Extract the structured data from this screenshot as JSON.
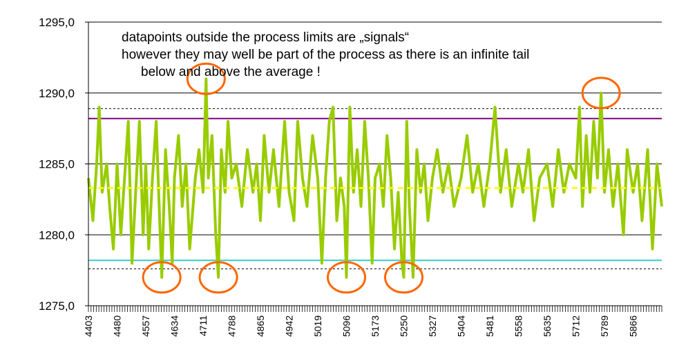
{
  "chart_data": {
    "type": "line",
    "title": "",
    "xlabel": "",
    "ylabel": "",
    "x_range": [
      4403,
      5943
    ],
    "ylim": [
      1275,
      1295
    ],
    "y_ticks": [
      "1275,0",
      "1280,0",
      "1285,0",
      "1290,0",
      "1295,0"
    ],
    "y_tick_values": [
      1275,
      1280,
      1285,
      1290,
      1295
    ],
    "x_ticks": [
      "4403",
      "4480",
      "4557",
      "4634",
      "4711",
      "4788",
      "4865",
      "4942",
      "5019",
      "5096",
      "5173",
      "5250",
      "5327",
      "5404",
      "5481",
      "5558",
      "5635",
      "5712",
      "5789",
      "5866"
    ],
    "x_tick_values": [
      4403,
      4480,
      4557,
      4634,
      4711,
      4788,
      4865,
      4942,
      5019,
      5096,
      5173,
      5250,
      5327,
      5404,
      5481,
      5558,
      5635,
      5712,
      5789,
      5866
    ],
    "grid": "horizontal gridlines at y ticks",
    "series": [
      {
        "color": "#99cc00",
        "points": [
          [
            4403,
            1284
          ],
          [
            4415,
            1281
          ],
          [
            4425,
            1285
          ],
          [
            4432,
            1289
          ],
          [
            4440,
            1283
          ],
          [
            4452,
            1285
          ],
          [
            4460,
            1282
          ],
          [
            4470,
            1279
          ],
          [
            4480,
            1285
          ],
          [
            4490,
            1280
          ],
          [
            4500,
            1284
          ],
          [
            4510,
            1288
          ],
          [
            4520,
            1278
          ],
          [
            4530,
            1283
          ],
          [
            4540,
            1288
          ],
          [
            4550,
            1280
          ],
          [
            4557,
            1285
          ],
          [
            4565,
            1279
          ],
          [
            4575,
            1284
          ],
          [
            4585,
            1288
          ],
          [
            4593,
            1282
          ],
          [
            4600,
            1277
          ],
          [
            4610,
            1286
          ],
          [
            4620,
            1282
          ],
          [
            4628,
            1278
          ],
          [
            4634,
            1284
          ],
          [
            4645,
            1287
          ],
          [
            4655,
            1282
          ],
          [
            4665,
            1285
          ],
          [
            4675,
            1279
          ],
          [
            4690,
            1284
          ],
          [
            4700,
            1286
          ],
          [
            4711,
            1283
          ],
          [
            4719,
            1291
          ],
          [
            4725,
            1284
          ],
          [
            4735,
            1287
          ],
          [
            4745,
            1280
          ],
          [
            4752,
            1277
          ],
          [
            4760,
            1286
          ],
          [
            4770,
            1283
          ],
          [
            4778,
            1288
          ],
          [
            4788,
            1284
          ],
          [
            4800,
            1285
          ],
          [
            4815,
            1282
          ],
          [
            4830,
            1286
          ],
          [
            4845,
            1283
          ],
          [
            4855,
            1285
          ],
          [
            4865,
            1281
          ],
          [
            4875,
            1287
          ],
          [
            4888,
            1283
          ],
          [
            4900,
            1286
          ],
          [
            4915,
            1282
          ],
          [
            4930,
            1288
          ],
          [
            4942,
            1283
          ],
          [
            4955,
            1281
          ],
          [
            4965,
            1288
          ],
          [
            4978,
            1284
          ],
          [
            4990,
            1282
          ],
          [
            5005,
            1287
          ],
          [
            5019,
            1284
          ],
          [
            5030,
            1278
          ],
          [
            5040,
            1284
          ],
          [
            5050,
            1288
          ],
          [
            5060,
            1289
          ],
          [
            5070,
            1281
          ],
          [
            5080,
            1284
          ],
          [
            5090,
            1282
          ],
          [
            5096,
            1277
          ],
          [
            5105,
            1289
          ],
          [
            5115,
            1283
          ],
          [
            5125,
            1286
          ],
          [
            5135,
            1282
          ],
          [
            5145,
            1288
          ],
          [
            5155,
            1284
          ],
          [
            5165,
            1278
          ],
          [
            5173,
            1284
          ],
          [
            5185,
            1285
          ],
          [
            5195,
            1282
          ],
          [
            5205,
            1287
          ],
          [
            5215,
            1284
          ],
          [
            5225,
            1279
          ],
          [
            5235,
            1283
          ],
          [
            5245,
            1278
          ],
          [
            5250,
            1277
          ],
          [
            5258,
            1288
          ],
          [
            5265,
            1282
          ],
          [
            5275,
            1277
          ],
          [
            5285,
            1286
          ],
          [
            5295,
            1283
          ],
          [
            5305,
            1285
          ],
          [
            5315,
            1281
          ],
          [
            5327,
            1284
          ],
          [
            5340,
            1286
          ],
          [
            5355,
            1283
          ],
          [
            5370,
            1285
          ],
          [
            5385,
            1282
          ],
          [
            5404,
            1284
          ],
          [
            5420,
            1287
          ],
          [
            5435,
            1283
          ],
          [
            5450,
            1285
          ],
          [
            5465,
            1282
          ],
          [
            5481,
            1285
          ],
          [
            5495,
            1289
          ],
          [
            5510,
            1283
          ],
          [
            5525,
            1286
          ],
          [
            5540,
            1282
          ],
          [
            5558,
            1285
          ],
          [
            5570,
            1283
          ],
          [
            5585,
            1286
          ],
          [
            5600,
            1281
          ],
          [
            5615,
            1284
          ],
          [
            5635,
            1285
          ],
          [
            5650,
            1282
          ],
          [
            5665,
            1286
          ],
          [
            5680,
            1283
          ],
          [
            5695,
            1285
          ],
          [
            5712,
            1284
          ],
          [
            5722,
            1289
          ],
          [
            5730,
            1282
          ],
          [
            5740,
            1287
          ],
          [
            5750,
            1283
          ],
          [
            5760,
            1288
          ],
          [
            5770,
            1284
          ],
          [
            5780,
            1290
          ],
          [
            5789,
            1283
          ],
          [
            5800,
            1286
          ],
          [
            5812,
            1282
          ],
          [
            5825,
            1285
          ],
          [
            5840,
            1280
          ],
          [
            5850,
            1286
          ],
          [
            5866,
            1283
          ],
          [
            5878,
            1285
          ],
          [
            5890,
            1281
          ],
          [
            5905,
            1286
          ],
          [
            5918,
            1279
          ],
          [
            5930,
            1285
          ],
          [
            5943,
            1282
          ]
        ]
      }
    ],
    "reference_lines": [
      {
        "label": "",
        "value": 1283.3,
        "color": "#ffff00",
        "style": "dashed"
      },
      {
        "label": "",
        "value": 1288.2,
        "color": "#800080",
        "style": "solid"
      },
      {
        "label": "",
        "value": 1278.2,
        "color": "#33cccc",
        "style": "solid"
      },
      {
        "label": "",
        "value": 1288.9,
        "color": "#000000",
        "style": "dotted"
      },
      {
        "label": "",
        "value": 1277.6,
        "color": "#000000",
        "style": "dotted"
      }
    ],
    "highlighted_points": [
      {
        "x": 4600,
        "y": 1277
      },
      {
        "x": 4719,
        "y": 1291
      },
      {
        "x": 4752,
        "y": 1277
      },
      {
        "x": 5096,
        "y": 1277
      },
      {
        "x": 5250,
        "y": 1277
      },
      {
        "x": 5780,
        "y": 1290
      }
    ],
    "highlight_color": "#ff6600",
    "annotations": [
      "datapoints outside the process limits are „signals“",
      "however they may well be part of the process as there is an infinite tail",
      "below and above the average !"
    ]
  }
}
